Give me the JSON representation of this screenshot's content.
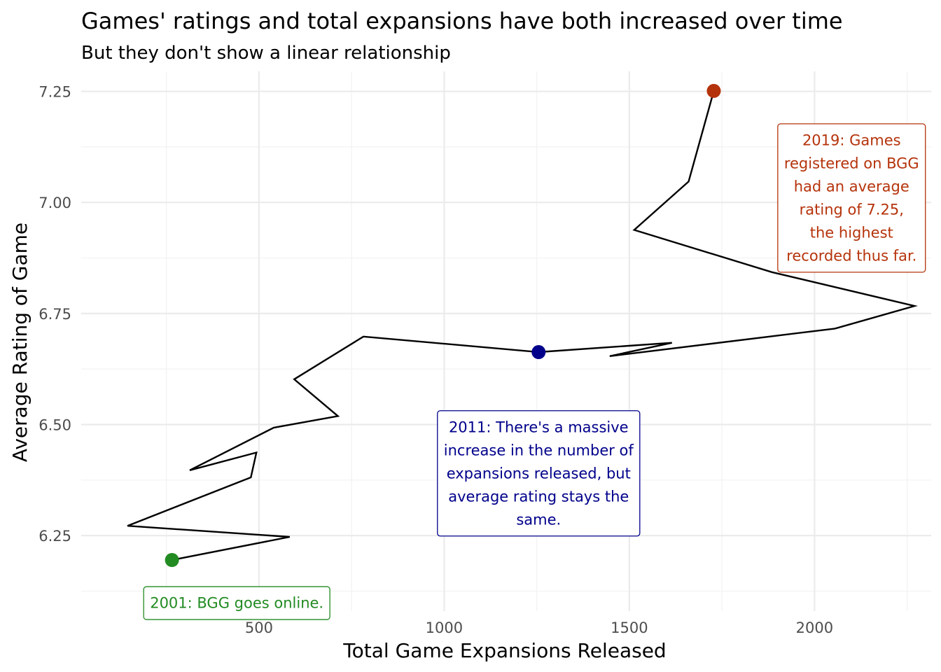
{
  "chart_data": {
    "type": "line",
    "title": "Games' ratings and total expansions have both increased over time",
    "subtitle": "But they don't show a linear relationship",
    "xlabel": "Total Game Expansions Released",
    "ylabel": "Average Rating of Game",
    "xlim": [
      20,
      2315
    ],
    "ylim": [
      6.08,
      7.295
    ],
    "x_ticks": [
      500,
      1000,
      1500,
      2000
    ],
    "x_minor_ticks": [
      250,
      750,
      1250,
      1750,
      2250
    ],
    "y_ticks": [
      6.25,
      6.5,
      6.75,
      7.0,
      7.25
    ],
    "y_minor_ticks": [
      6.125,
      6.375,
      6.625,
      6.875,
      7.125
    ],
    "x_tick_labels": [
      "500",
      "1000",
      "1500",
      "2000"
    ],
    "y_tick_labels": [
      "6.25",
      "6.50",
      "6.75",
      "7.00",
      "7.25"
    ],
    "grid": true,
    "line_color": "#000000",
    "series": [
      {
        "points": [
          [
            265,
            6.195
          ],
          [
            583,
            6.247
          ],
          [
            145,
            6.272
          ],
          [
            478,
            6.381
          ],
          [
            493,
            6.437
          ],
          [
            313,
            6.397
          ],
          [
            540,
            6.493
          ],
          [
            713,
            6.519
          ],
          [
            595,
            6.602
          ],
          [
            782,
            6.698
          ],
          [
            1255,
            6.663
          ],
          [
            1615,
            6.684
          ],
          [
            1447,
            6.654
          ],
          [
            2055,
            6.716
          ],
          [
            2270,
            6.767
          ],
          [
            1885,
            6.843
          ],
          [
            1513,
            6.938
          ],
          [
            1660,
            7.047
          ],
          [
            1728,
            7.251
          ]
        ]
      }
    ],
    "highlights": [
      {
        "x": 265,
        "y": 6.195,
        "color": "#228b22"
      },
      {
        "x": 1255,
        "y": 6.663,
        "color": "#00008b"
      },
      {
        "x": 1728,
        "y": 7.251,
        "color": "#b5330b"
      }
    ],
    "annotations": [
      {
        "x": 440,
        "y": 6.098,
        "lines": [
          "2001: BGG goes online."
        ],
        "color": "#228b22"
      },
      {
        "x": 1255,
        "y": 6.39,
        "lines": [
          "2011: There's a massive",
          "increase in the number of",
          "expansions released, but",
          "average rating stays the",
          "same."
        ],
        "color": "#00008b"
      },
      {
        "x": 2100,
        "y": 7.01,
        "lines": [
          "2019: Games",
          "registered on BGG",
          "had an average",
          "rating of 7.25,",
          "the highest",
          "recorded thus far."
        ],
        "color": "#b5330b"
      }
    ]
  }
}
